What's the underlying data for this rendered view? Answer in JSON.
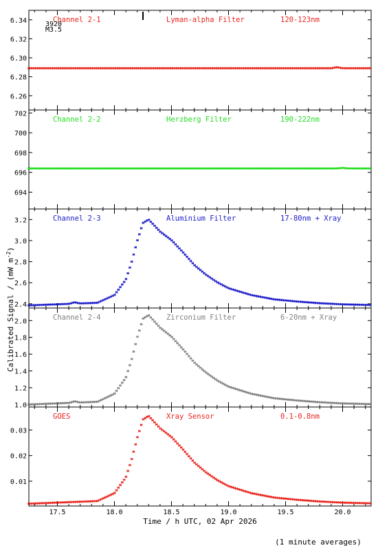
{
  "figure": {
    "ylabel": "Calibrated Signal / (mW m",
    "ylabel_sup": "-2",
    "ylabel_close": ")",
    "xlabel": "Time / h UTC, 02 Apr 2026",
    "footnote": "(1 minute averages)",
    "flare_marker": {
      "id": "3920",
      "class": "M3.5",
      "time": 18.25
    }
  },
  "chart_data": [
    {
      "type": "scatter",
      "channel": "Channel 2-1",
      "filter": "Lyman-alpha Filter",
      "band": "120-123nm",
      "color": "#e8231c",
      "ylim": [
        6.245,
        6.35
      ],
      "yticks": [
        6.26,
        6.28,
        6.3,
        6.32,
        6.34
      ],
      "tick_decimals": 2,
      "shape": {
        "baseline": 6.289,
        "peak_add": 0.0,
        "bump_time": 19.95,
        "bump_add": 0.001
      }
    },
    {
      "type": "scatter",
      "channel": "Channel 2-2",
      "filter": "Herzberg Filter",
      "band": "190-222nm",
      "color": "#22dd22",
      "ylim": [
        692.3,
        702.3
      ],
      "yticks": [
        694,
        696,
        698,
        700,
        702
      ],
      "tick_decimals": 0,
      "shape": {
        "baseline": 696.4,
        "peak_add": 0.0,
        "bump_time": 20.0,
        "bump_add": 0.05
      }
    },
    {
      "type": "scatter",
      "channel": "Channel 2-3",
      "filter": "Aluminium Filter",
      "band": "17-80nm + Xray",
      "color": "#1c1cc8",
      "ylim": [
        2.36,
        3.3
      ],
      "yticks": [
        2.4,
        2.6,
        2.8,
        3.0,
        3.2
      ],
      "tick_decimals": 1,
      "shape": {
        "baseline": 2.385,
        "peak_add": 0.815,
        "bump_time": 17.65,
        "bump_add": 0.012
      }
    },
    {
      "type": "scatter",
      "channel": "Channel 2-4",
      "filter": "Zirconium Filter",
      "band": "6-20nm + Xray",
      "color": "#808080",
      "ylim": [
        0.97,
        2.15
      ],
      "yticks": [
        1.0,
        1.2,
        1.4,
        1.6,
        1.8,
        2.0
      ],
      "tick_decimals": 1,
      "shape": {
        "baseline": 1.0,
        "peak_add": 1.065,
        "bump_time": 17.65,
        "bump_add": 0.015
      }
    },
    {
      "type": "scatter",
      "channel": "GOES",
      "filter": "Xray Sensor",
      "band": "0.1-0.8nm",
      "color": "#e8231c",
      "ylim": [
        0.0003,
        0.039
      ],
      "yticks": [
        0.01,
        0.02,
        0.03
      ],
      "tick_decimals": 2,
      "shape": {
        "baseline": 0.0012,
        "peak_add": 0.0343,
        "bump_time": 17.65,
        "bump_add": 0.0
      }
    }
  ],
  "x_axis": {
    "xlim": [
      17.25,
      20.25
    ],
    "ticks": [
      17.5,
      18.0,
      18.5,
      19.0,
      19.5,
      20.0
    ],
    "tick_labels": [
      "17.5",
      "18.0",
      "18.5",
      "19.0",
      "19.5",
      "20.0"
    ]
  },
  "flare_profile": {
    "start": 17.9,
    "rise_end": 18.3,
    "peak": 18.3,
    "knots": [
      [
        17.25,
        0.0
      ],
      [
        17.85,
        0.03
      ],
      [
        18.0,
        0.12
      ],
      [
        18.1,
        0.3
      ],
      [
        18.15,
        0.5
      ],
      [
        18.2,
        0.75
      ],
      [
        18.25,
        0.96
      ],
      [
        18.3,
        1.0
      ],
      [
        18.35,
        0.93
      ],
      [
        18.4,
        0.86
      ],
      [
        18.5,
        0.76
      ],
      [
        18.6,
        0.62
      ],
      [
        18.7,
        0.47
      ],
      [
        18.8,
        0.36
      ],
      [
        18.9,
        0.27
      ],
      [
        19.0,
        0.2
      ],
      [
        19.2,
        0.12
      ],
      [
        19.4,
        0.07
      ],
      [
        19.6,
        0.045
      ],
      [
        19.8,
        0.025
      ],
      [
        20.0,
        0.012
      ],
      [
        20.25,
        0.004
      ]
    ]
  }
}
